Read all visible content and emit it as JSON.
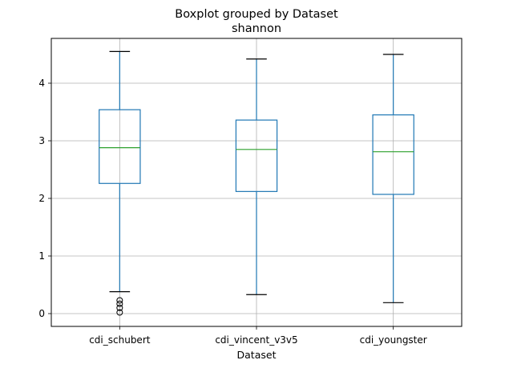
{
  "chart_data": {
    "type": "box",
    "title": "Boxplot grouped by Dataset",
    "subtitle": "shannon",
    "xlabel": "Dataset",
    "ylabel": "",
    "categories": [
      "cdi_schubert",
      "cdi_vincent_v3v5",
      "cdi_youngster"
    ],
    "boxes": [
      {
        "name": "cdi_schubert",
        "whislo": 0.38,
        "q1": 2.26,
        "med": 2.88,
        "q3": 3.54,
        "whishi": 4.55,
        "fliers": [
          0.02,
          0.1,
          0.17,
          0.23
        ]
      },
      {
        "name": "cdi_vincent_v3v5",
        "whislo": 0.33,
        "q1": 2.12,
        "med": 2.85,
        "q3": 3.36,
        "whishi": 4.42,
        "fliers": []
      },
      {
        "name": "cdi_youngster",
        "whislo": 0.19,
        "q1": 2.07,
        "med": 2.81,
        "q3": 3.45,
        "whishi": 4.5,
        "fliers": []
      }
    ],
    "yticks": [
      0,
      1,
      2,
      3,
      4
    ],
    "ylim": [
      -0.21,
      4.78
    ],
    "grid": true,
    "legend": "none",
    "colors": {
      "box": "#1f77b4",
      "median": "#2ca02c",
      "whisker_cap": "#000000",
      "flier": "#000000",
      "grid": "#b0b0b0"
    }
  }
}
